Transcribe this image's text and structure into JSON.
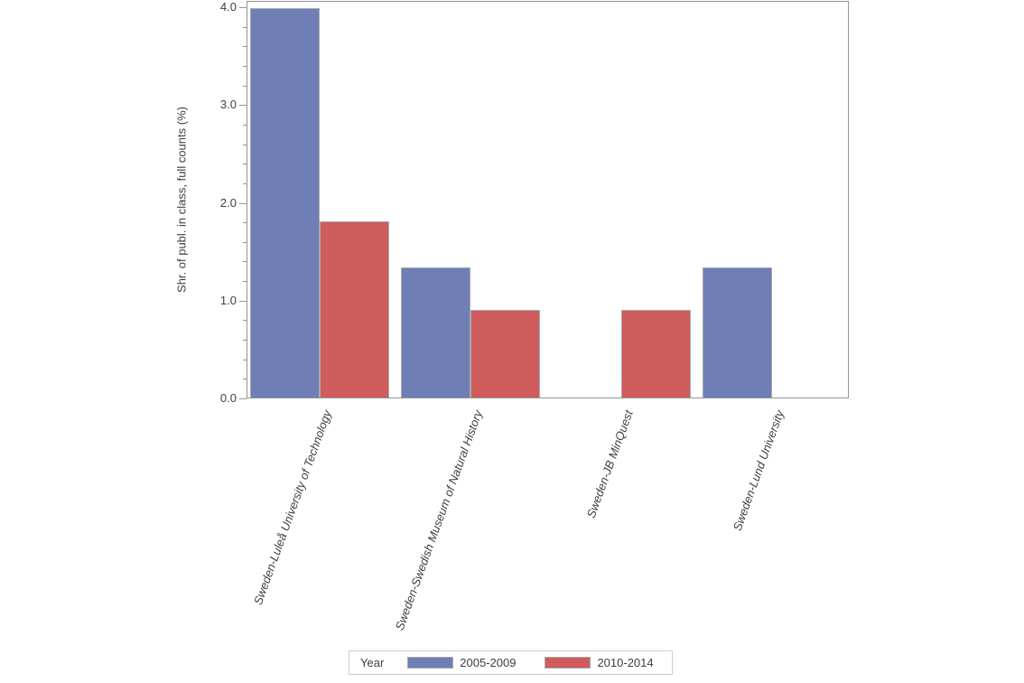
{
  "chart_data": {
    "type": "bar",
    "title": "",
    "xlabel": "",
    "ylabel": "Shr. of publ. in class, full counts (%)",
    "categories": [
      "Sweden-Luleå University of Technology",
      "Sweden-Swedish Museum of Natural History",
      "Sweden-JB MinQuest",
      "Sweden-Lund University"
    ],
    "series": [
      {
        "name": "2005-2009",
        "color": "#6f7eb5",
        "values": [
          3.98,
          1.33,
          0,
          1.33
        ]
      },
      {
        "name": "2010-2014",
        "color": "#ce5c5c",
        "values": [
          1.8,
          0.9,
          0.9,
          0
        ]
      }
    ],
    "ylim": [
      0,
      4
    ],
    "yticks": [
      0,
      1,
      2,
      3,
      4
    ],
    "ytick_labels": [
      "0.0",
      "1.0",
      "2.0",
      "3.0",
      "4.0"
    ],
    "minor_ticks_per_interval": 4,
    "grid": false,
    "legend_title": "Year",
    "legend_position": "bottom",
    "category_label_rotation_deg": -70,
    "bar_outline_color": "#a6abae",
    "axis_color": "#8f9598"
  }
}
